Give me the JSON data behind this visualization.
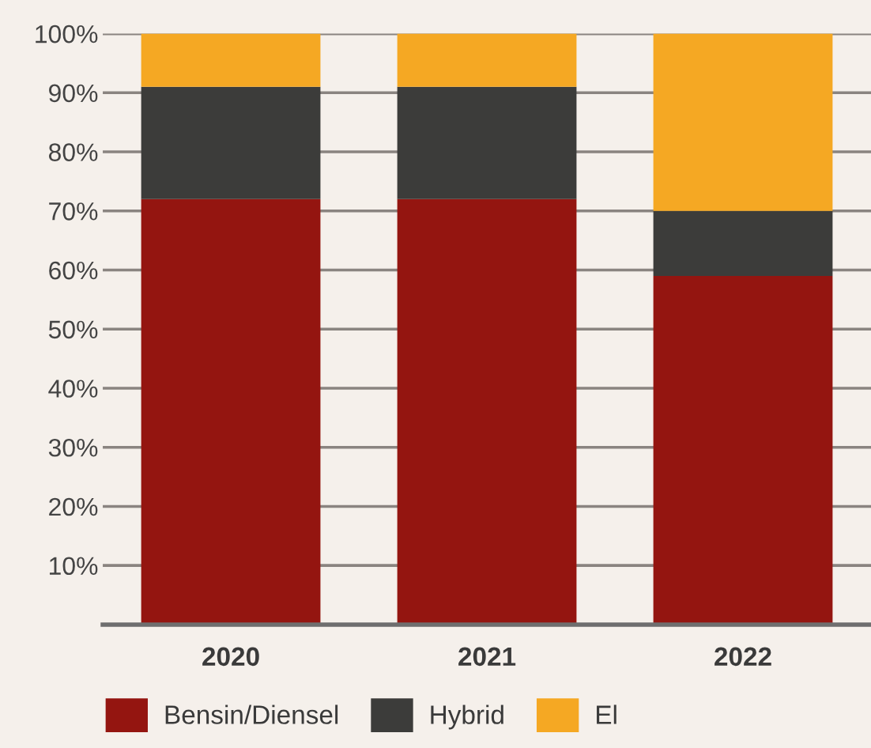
{
  "chart_data": {
    "type": "bar",
    "stacked": true,
    "categories": [
      "2020",
      "2021",
      "2022"
    ],
    "series": [
      {
        "name": "Bensin/Diensel",
        "color": "#941510",
        "values": [
          72,
          72,
          59
        ]
      },
      {
        "name": "Hybrid",
        "color": "#3c3c3a",
        "values": [
          19,
          19,
          11
        ]
      },
      {
        "name": "El",
        "color": "#f5a823",
        "values": [
          9,
          9,
          30
        ]
      }
    ],
    "ylim": [
      0,
      100
    ],
    "yticks": [
      {
        "value": 0,
        "label": null
      },
      {
        "value": 10,
        "label": "10%"
      },
      {
        "value": 20,
        "label": "20%"
      },
      {
        "value": 30,
        "label": "30%"
      },
      {
        "value": 40,
        "label": "40%"
      },
      {
        "value": 50,
        "label": "50%"
      },
      {
        "value": 60,
        "label": "60%"
      },
      {
        "value": 70,
        "label": "70%"
      },
      {
        "value": 80,
        "label": "80%"
      },
      {
        "value": 90,
        "label": "90%"
      },
      {
        "value": 100,
        "label": "100%"
      }
    ],
    "grid": "y",
    "legend": "bottom"
  }
}
